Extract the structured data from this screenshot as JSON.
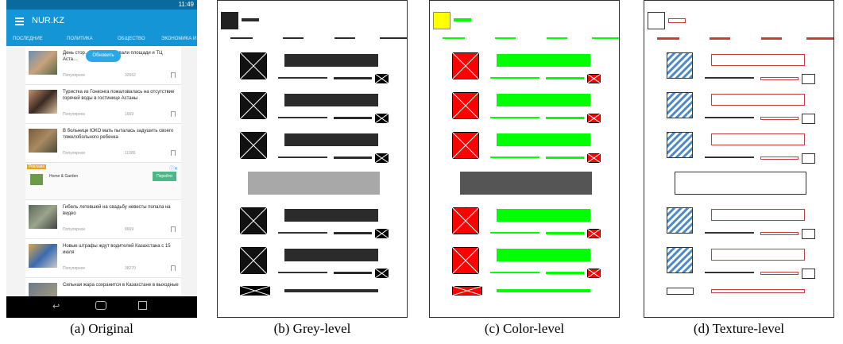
{
  "captions": {
    "a": "(a) Original",
    "b": "(b) Grey-level",
    "c": "(c) Color-level",
    "d": "(d) Texture-level"
  },
  "phone": {
    "status_time": "11:49",
    "app_title": "NUR.KZ",
    "tabs": [
      "ПОСЛЕДНИЕ",
      "ПОЛИТИКА",
      "ОБЩЕСТВО",
      "ЭКОНОМИКА И"
    ],
    "refresh_label": "Обновить",
    "items": [
      {
        "title": "День стор… людей атаковали площади и ТЦ Аста…",
        "tag": "Популярное",
        "views": "32662"
      },
      {
        "title": "Туристка из Гонконга пожаловалась на отсутствие горячей воды в гостинице Астаны",
        "tag": "Популярное",
        "views": "1669"
      },
      {
        "title": "В больнице ЮКО мать пыталась задушить своего тяжелобольного ребенка",
        "tag": "Популярное",
        "views": "11085"
      },
      {
        "title": "Гибель летевшей на свадьбу невесты попала на видео",
        "tag": "Популярное",
        "views": "8669"
      },
      {
        "title": "Новые штрафы ждут водителей Казахстана с 15 июля",
        "tag": "Популярное",
        "views": "38270"
      },
      {
        "title": "Сильная жара сохранится в Казахстане в выходные",
        "tag": "",
        "views": ""
      }
    ],
    "ad": {
      "badge": "Реклама",
      "name": "Home & Garden",
      "button": "Перейти"
    }
  },
  "colors": {
    "appbar": "#1495d6",
    "grey_dark": "#2b2b2b",
    "grey_banner": "#a8a8a8",
    "green": "#00ff00",
    "red": "#ff0000",
    "yellow": "#ffff00",
    "purple": "#7b3fbf"
  }
}
